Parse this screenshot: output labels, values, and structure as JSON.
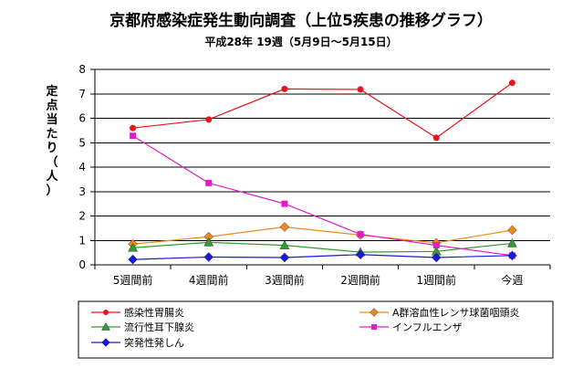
{
  "chart_data": {
    "type": "line",
    "title": "京都府感染症発生動向調査（上位5疾患の推移グラフ）",
    "subtitle": "平成28年 19週（5月9日～5月15日）",
    "ylabel": "定点当たり（人）",
    "xlabel": "",
    "categories": [
      "5週間前",
      "4週間前",
      "3週間前",
      "2週間前",
      "1週間前",
      "今週"
    ],
    "ylim": [
      0,
      8
    ],
    "yticks": [
      "0",
      "1",
      "2",
      "3",
      "4",
      "5",
      "6",
      "7",
      "8"
    ],
    "grid": true,
    "legend_position": "bottom",
    "series": [
      {
        "name": "感染性胃腸炎",
        "color": "#e8141b",
        "marker": "circle",
        "values": [
          5.6,
          5.95,
          7.2,
          7.18,
          5.2,
          7.45
        ]
      },
      {
        "name": "A群溶血性レンサ球菌咽頭炎",
        "color": "#ee8a1c",
        "marker": "diamond",
        "values": [
          0.85,
          1.15,
          1.55,
          1.22,
          0.9,
          1.42
        ]
      },
      {
        "name": "流行性耳下腺炎",
        "color": "#2e9e2e",
        "marker": "triangle",
        "values": [
          0.7,
          0.92,
          0.8,
          0.52,
          0.55,
          0.88
        ]
      },
      {
        "name": "インフルエンザ",
        "color": "#e01ec8",
        "marker": "square",
        "values": [
          5.28,
          3.35,
          2.5,
          1.25,
          0.8,
          0.38
        ]
      },
      {
        "name": "突発性発しん",
        "color": "#1a1adc",
        "marker": "diamond",
        "values": [
          0.22,
          0.32,
          0.3,
          0.42,
          0.3,
          0.38
        ]
      }
    ]
  }
}
